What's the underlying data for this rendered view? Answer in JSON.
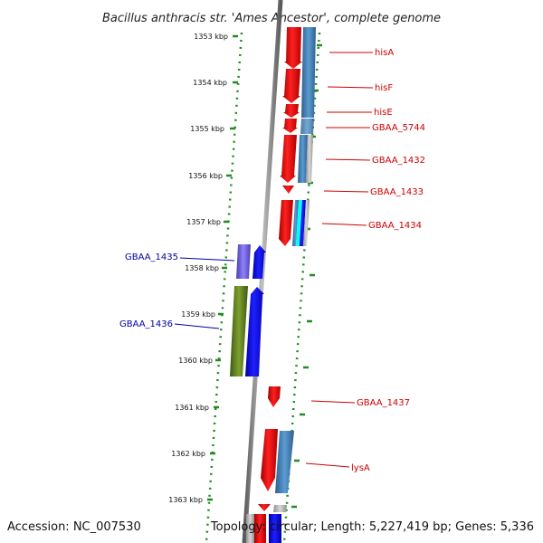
{
  "title": "Bacillus anthracis str. 'Ames Ancestor', complete genome",
  "footer": {
    "accession": "Accession: NC_007530",
    "summary": "Topology: circular; Length: 5,227,419 bp; Genes: 5,336"
  },
  "ruler": {
    "ticks": [
      "1353 kbp",
      "1354 kbp",
      "1355 kbp",
      "1356 kbp",
      "1357 kbp",
      "1358 kbp",
      "1359 kbp",
      "1360 kbp",
      "1361 kbp",
      "1362 kbp",
      "1363 kbp"
    ]
  },
  "genes": {
    "forward": [
      "hisA",
      "hisF",
      "hisE",
      "GBAA_5744",
      "GBAA_1432",
      "GBAA_1433",
      "GBAA_1434",
      "GBAA_1437",
      "lysA"
    ],
    "reverse": [
      "GBAA_1435",
      "GBAA_1436"
    ]
  },
  "colors": {
    "forward_label": "#cc0000",
    "reverse_label": "#0000aa",
    "gene_red": "#ee0000",
    "gene_blue": "#0000ee",
    "cds_steel": "#4682b4",
    "cds_olive": "#5f7f1f",
    "cds_lavender": "#7b68ee",
    "cds_cyan": "#00ffff",
    "ruler_green": "#228b22",
    "backbone": "#808080"
  }
}
